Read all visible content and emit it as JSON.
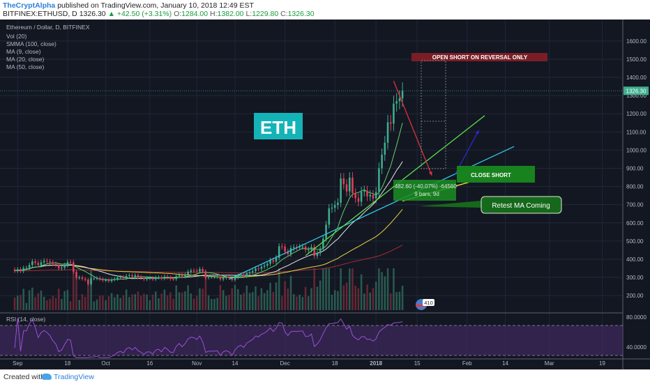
{
  "header": {
    "author": "TheCryptAlpha",
    "published": "published on TradingView.com, January 10, 2018 12:49 EST",
    "symbol": "BITFINEX:ETHUSD, D",
    "last": "1326.30",
    "change": "+42.50 (+3.31%)",
    "open": "1284.00",
    "high": "1382.00",
    "low": "1229.80",
    "close": "1326.30",
    "o_label": "O:",
    "h_label": "H:",
    "l_label": "L:",
    "c_label": "C:"
  },
  "legend": {
    "title": "Ethereum / Dollar, D, BITFINEX",
    "items": [
      "Vol (20)",
      "SMMA (100, close)",
      "MA (9, close)",
      "MA (20, close)",
      "MA (50, close)"
    ]
  },
  "annotations": {
    "eth": "ETH",
    "open_short": "OPEN SHORT ON REVERSAL ONLY",
    "close_short": "CLOSE SHORT",
    "retest": "Retest MA Coming",
    "measure_line1": "-482.60 (-40.07%) -64560",
    "measure_line2": "9 bars, 9d",
    "volume_badge": "410"
  },
  "rsi": {
    "label": "RSI (14, close)",
    "ticks": [
      "80.0000",
      "40.0000"
    ]
  },
  "footer": {
    "created_with": "Created with",
    "tradingview": "TradingView"
  },
  "colors": {
    "background": "#131722",
    "up": "#3fae8e",
    "down": "#e0405a",
    "ma9": "#62d16c",
    "ma20": "#e8e8e8",
    "ma50": "#e6d442",
    "smma100": "#a22d3a",
    "rsi": "#7e36b9",
    "eth_box": "#14b3b8",
    "open_short_box": "#7a1e26",
    "close_short_box": "#18821f"
  },
  "chart_data": {
    "type": "candlestick",
    "title": "Ethereum / Dollar, D, BITFINEX",
    "y_ticks": [
      200,
      300,
      400,
      500,
      600,
      700,
      800,
      900,
      1000,
      1100,
      1200,
      1300,
      1400,
      1500,
      1600
    ],
    "ylim": [
      120,
      1680
    ],
    "last_price": 1326.3,
    "x_labels": [
      "Sep",
      "18",
      "Oct",
      "16",
      "Nov",
      "14",
      "Dec",
      "18",
      "2018",
      "15",
      "Feb",
      "14",
      "Mar",
      "19"
    ],
    "x_range": [
      "2017-08-26",
      "2018-03-26"
    ],
    "x_label_dates": [
      "2017-09-01",
      "2017-09-18",
      "2017-10-01",
      "2017-10-16",
      "2017-11-01",
      "2017-11-14",
      "2017-12-01",
      "2017-12-18",
      "2018-01-01",
      "2018-01-15",
      "2018-02-01",
      "2018-02-14",
      "2018-03-01",
      "2018-03-19"
    ],
    "closes": [
      336,
      345,
      335,
      352,
      352,
      368,
      388,
      380,
      367,
      383,
      391,
      388,
      383,
      374,
      368,
      350,
      354,
      368,
      384,
      383,
      331,
      298,
      300,
      292,
      287,
      264,
      294,
      294,
      296,
      290,
      284,
      285,
      280,
      288,
      292,
      299,
      302,
      296,
      308,
      312,
      305,
      312,
      302,
      297,
      290,
      296,
      296,
      290,
      299,
      301,
      294,
      305,
      300,
      292,
      291,
      306,
      314,
      306,
      315,
      331,
      338,
      337,
      333,
      346,
      333,
      299,
      303,
      303,
      303,
      304,
      289,
      298,
      301,
      297,
      286,
      300,
      310,
      314,
      308,
      322,
      328,
      335,
      349,
      347,
      359,
      365,
      375,
      395,
      387,
      408,
      471,
      469,
      442,
      428,
      461,
      466,
      465,
      469,
      469,
      452,
      453,
      467,
      418,
      433,
      458,
      513,
      590,
      679,
      683,
      698,
      711,
      844,
      812,
      773,
      849,
      764,
      736,
      716,
      771,
      777,
      746,
      754,
      734,
      770,
      900,
      975,
      1041,
      1153,
      1146,
      1256,
      1269,
      1284,
      1326.3
    ],
    "opens": [
      343,
      336,
      345,
      335,
      352,
      352,
      368,
      388,
      380,
      367,
      383,
      391,
      388,
      383,
      374,
      368,
      350,
      354,
      368,
      384,
      383,
      331,
      298,
      300,
      292,
      287,
      264,
      294,
      294,
      296,
      290,
      284,
      285,
      280,
      288,
      292,
      299,
      302,
      296,
      308,
      312,
      305,
      312,
      302,
      297,
      290,
      296,
      296,
      290,
      299,
      301,
      294,
      305,
      300,
      292,
      291,
      306,
      314,
      306,
      315,
      331,
      338,
      337,
      333,
      346,
      333,
      299,
      303,
      303,
      303,
      304,
      289,
      298,
      301,
      297,
      286,
      300,
      310,
      314,
      308,
      322,
      328,
      335,
      349,
      347,
      359,
      365,
      375,
      395,
      387,
      408,
      471,
      469,
      442,
      428,
      461,
      466,
      465,
      469,
      469,
      452,
      453,
      467,
      418,
      433,
      458,
      513,
      590,
      679,
      683,
      698,
      711,
      844,
      812,
      773,
      849,
      764,
      736,
      716,
      771,
      777,
      746,
      754,
      734,
      770,
      900,
      975,
      1041,
      1153,
      1146,
      1256,
      1269,
      1284
    ],
    "annotation_lines": [
      {
        "name": "uptrend-line-cyan",
        "from": [
          "2017-11-12",
          290
        ],
        "to": [
          "2018-02-17",
          1020
        ],
        "color": "#33c9e8"
      },
      {
        "name": "uptrend-line-green",
        "from": [
          "2017-12-08",
          420
        ],
        "to": [
          "2018-02-07",
          1190
        ],
        "color": "#5fe14a"
      },
      {
        "name": "projection-line-yellow",
        "from": [
          "2018-01-10",
          720
        ],
        "to": [
          "2018-02-14",
          880
        ],
        "color": "#ffee33"
      },
      {
        "name": "projection-line-blue",
        "from": [
          "2018-01-28",
          870
        ],
        "to": [
          "2018-02-05",
          1110
        ],
        "color": "#2a2acb"
      },
      {
        "name": "reversal-arrow-red",
        "from": [
          "2018-01-07",
          1380
        ],
        "to": [
          "2018-01-20",
          860
        ],
        "color": "#e0323c"
      }
    ]
  }
}
